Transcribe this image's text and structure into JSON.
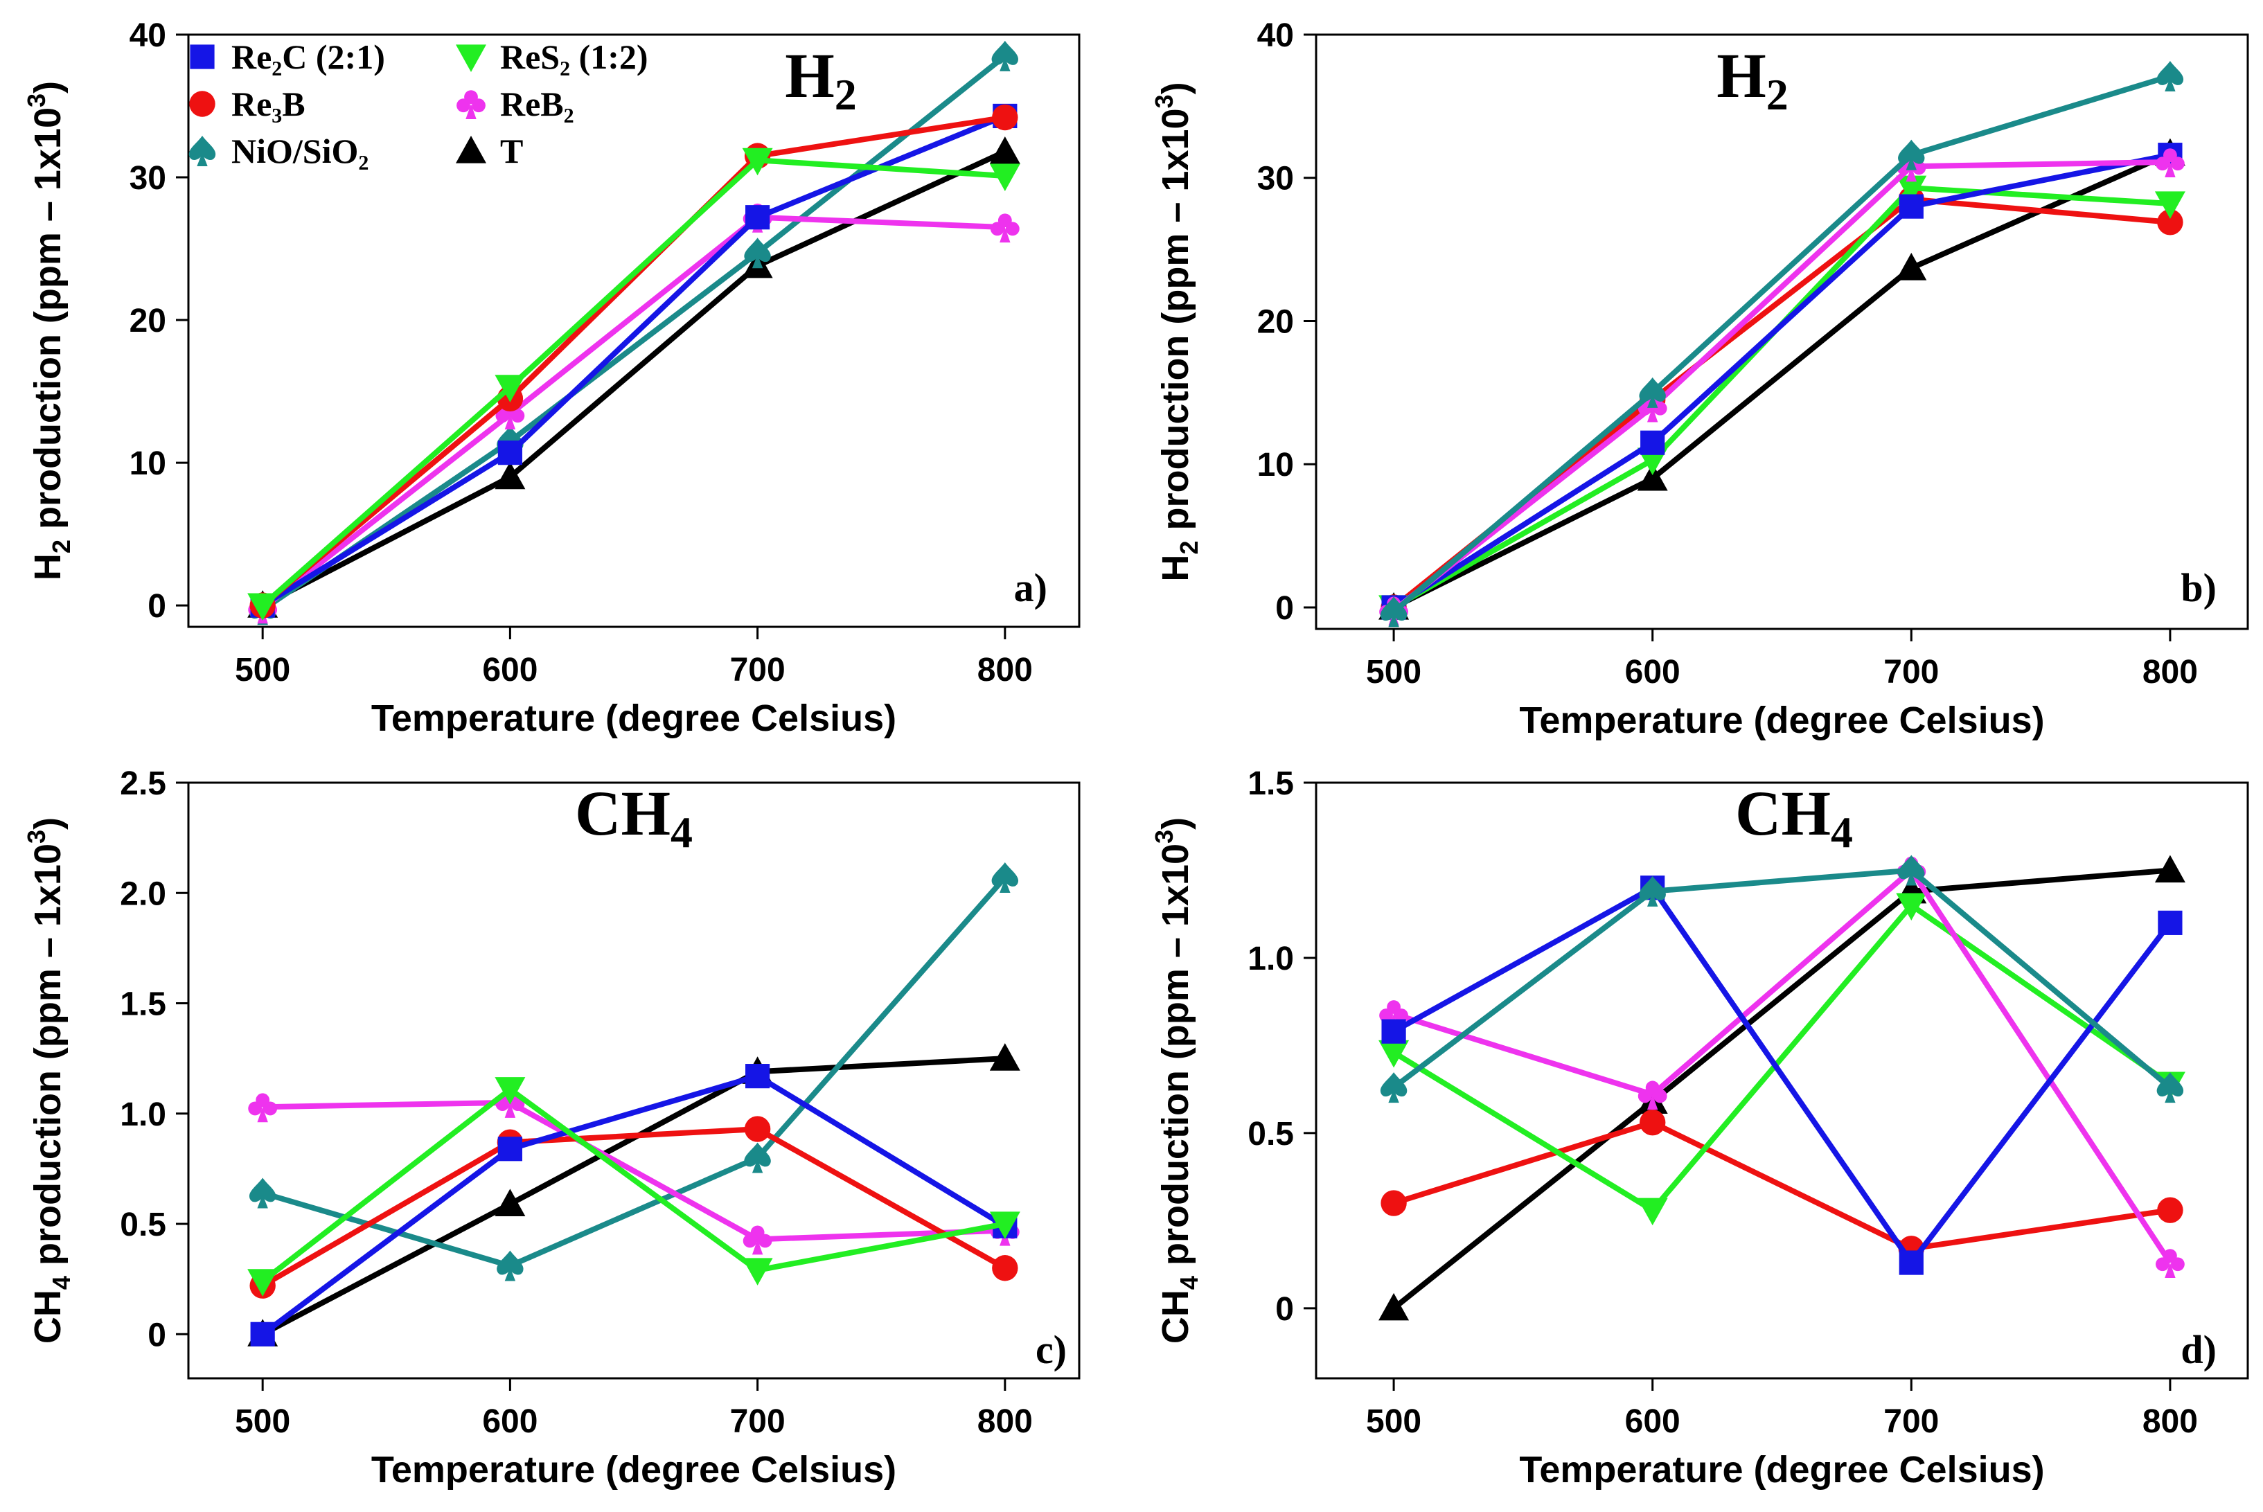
{
  "legend": {
    "entries": [
      {
        "series": "Re2C",
        "label": "Re₂C (2:1)"
      },
      {
        "series": "ReS2",
        "label": "ReS₂ (1:2)"
      },
      {
        "series": "Re3B",
        "label": "Re₃B"
      },
      {
        "series": "ReB2",
        "label": "ReB₂"
      },
      {
        "series": "NiO",
        "label": "NiO/SiO₂"
      },
      {
        "series": "T",
        "label": "T"
      }
    ]
  },
  "series_styles": {
    "Re2C": {
      "color": "#1515e6",
      "marker": "square"
    },
    "ReS2": {
      "color": "#22ee22",
      "marker": "triangle-down"
    },
    "Re3B": {
      "color": "#ee1111",
      "marker": "circle"
    },
    "ReB2": {
      "color": "#ee33ee",
      "marker": "club"
    },
    "NiO": {
      "color": "#1a8a8a",
      "marker": "spade"
    },
    "T": {
      "color": "#000000",
      "marker": "triangle-up"
    }
  },
  "chart_data": [
    {
      "type": "line",
      "panel": "a)",
      "title": "H",
      "title_sub": "2",
      "xlabel": "Temperature (degree Celsius)",
      "ylabel": "H2 production (ppm – 1x10³)",
      "ylabel_parts": [
        "H",
        "2",
        " production (ppm – 1x10",
        "3",
        ")"
      ],
      "x": [
        500,
        600,
        700,
        800
      ],
      "xlim": [
        470,
        830
      ],
      "ylim": [
        -1.5,
        40
      ],
      "yticks": [
        0,
        10,
        20,
        30,
        40
      ],
      "ytick_labels": [
        "0",
        "10",
        "20",
        "30",
        "40"
      ],
      "xtick_labels": [
        "500",
        "600",
        "700",
        "800"
      ],
      "series": [
        {
          "key": "T",
          "name": "T",
          "values": [
            0,
            9,
            23.8,
            31.8
          ]
        },
        {
          "key": "NiO",
          "name": "NiO/SiO₂",
          "values": [
            -0.3,
            11.5,
            24.7,
            38.5
          ]
        },
        {
          "key": "ReB2",
          "name": "ReB₂",
          "values": [
            -0.2,
            13.4,
            27.2,
            26.5
          ]
        },
        {
          "key": "Re2C",
          "name": "Re₂C (2:1)",
          "values": [
            0,
            10.7,
            27.2,
            34.3
          ]
        },
        {
          "key": "Re3B",
          "name": "Re₃B",
          "values": [
            0,
            14.5,
            31.5,
            34.2
          ]
        },
        {
          "key": "ReS2",
          "name": "ReS₂ (1:2)",
          "values": [
            0,
            15.3,
            31.2,
            30.1
          ]
        }
      ]
    },
    {
      "type": "line",
      "panel": "b)",
      "title": "H",
      "title_sub": "2",
      "xlabel": "Temperature (degree Celsius)",
      "ylabel": "H2 production (ppm – 1x10³)",
      "ylabel_parts": [
        "H",
        "2",
        " production (ppm – 1x10",
        "3",
        ")"
      ],
      "x": [
        500,
        600,
        700,
        800
      ],
      "xlim": [
        470,
        830
      ],
      "ylim": [
        -1.5,
        40
      ],
      "yticks": [
        0,
        10,
        20,
        30,
        40
      ],
      "ytick_labels": [
        "0",
        "10",
        "20",
        "30",
        "40"
      ],
      "xtick_labels": [
        "500",
        "600",
        "700",
        "800"
      ],
      "series": [
        {
          "key": "T",
          "name": "T",
          "values": [
            0,
            9,
            23.7,
            31.7
          ]
        },
        {
          "key": "Re3B",
          "name": "Re₃B",
          "values": [
            0,
            14.5,
            28.5,
            26.9
          ]
        },
        {
          "key": "ReS2",
          "name": "ReS₂ (1:2)",
          "values": [
            0,
            10.3,
            29.3,
            28.2
          ]
        },
        {
          "key": "Re2C",
          "name": "Re₂C (2:1)",
          "values": [
            0,
            11.5,
            28,
            31.6
          ]
        },
        {
          "key": "ReB2",
          "name": "ReB₂",
          "values": [
            -0.2,
            14,
            30.8,
            31.1
          ]
        },
        {
          "key": "NiO",
          "name": "NiO/SiO₂",
          "values": [
            -0.3,
            15,
            31.6,
            37.1
          ]
        }
      ]
    },
    {
      "type": "line",
      "panel": "c)",
      "title": "CH",
      "title_sub": "4",
      "xlabel": "Temperature (degree Celsius)",
      "ylabel": "CH4 production (ppm – 1x10³)",
      "ylabel_parts": [
        "CH",
        "4",
        " production (ppm – 1x10",
        "3",
        ")"
      ],
      "x": [
        500,
        600,
        700,
        800
      ],
      "xlim": [
        470,
        830
      ],
      "ylim": [
        -0.2,
        2.5
      ],
      "yticks": [
        0,
        0.5,
        1.0,
        1.5,
        2.0,
        2.5
      ],
      "ytick_labels": [
        "0",
        "0.5",
        "1.0",
        "1.5",
        "2.0",
        "2.5"
      ],
      "xtick_labels": [
        "500",
        "600",
        "700",
        "800"
      ],
      "series": [
        {
          "key": "T",
          "name": "T",
          "values": [
            0,
            0.59,
            1.19,
            1.25
          ]
        },
        {
          "key": "NiO",
          "name": "NiO/SiO₂",
          "values": [
            0.64,
            0.31,
            0.8,
            2.07
          ]
        },
        {
          "key": "ReB2",
          "name": "ReB₂",
          "values": [
            1.03,
            1.05,
            0.43,
            0.47
          ]
        },
        {
          "key": "Re3B",
          "name": "Re₃B",
          "values": [
            0.22,
            0.87,
            0.93,
            0.3
          ]
        },
        {
          "key": "Re2C",
          "name": "Re₂C (2:1)",
          "values": [
            0,
            0.84,
            1.17,
            0.49
          ]
        },
        {
          "key": "ReS2",
          "name": "ReS₂ (1:2)",
          "values": [
            0.24,
            1.11,
            0.29,
            0.5
          ]
        }
      ]
    },
    {
      "type": "line",
      "panel": "d)",
      "title": "CH",
      "title_sub": "4",
      "xlabel": "Temperature (degree Celsius)",
      "ylabel": "CH4 production (ppm – 1x10³)",
      "ylabel_parts": [
        "CH",
        "4",
        " production (ppm – 1x10",
        "3",
        ")"
      ],
      "x": [
        500,
        600,
        700,
        800
      ],
      "xlim": [
        470,
        830
      ],
      "ylim": [
        -0.2,
        1.5
      ],
      "yticks": [
        0,
        0.5,
        1.0,
        1.5
      ],
      "ytick_labels": [
        "0",
        "0.5",
        "1.0",
        "1.5"
      ],
      "xtick_labels": [
        "500",
        "600",
        "700",
        "800"
      ],
      "series": [
        {
          "key": "T",
          "name": "T",
          "values": [
            0,
            0.59,
            1.19,
            1.25
          ]
        },
        {
          "key": "Re3B",
          "name": "Re₃B",
          "values": [
            0.3,
            0.53,
            0.17,
            0.28
          ]
        },
        {
          "key": "ReS2",
          "name": "ReS₂ (1:2)",
          "values": [
            0.73,
            0.28,
            1.15,
            0.64
          ]
        },
        {
          "key": "ReB2",
          "name": "ReB₂",
          "values": [
            0.84,
            0.61,
            1.25,
            0.13
          ]
        },
        {
          "key": "Re2C",
          "name": "Re₂C (2:1)",
          "values": [
            0.79,
            1.2,
            0.13,
            1.1
          ]
        },
        {
          "key": "NiO",
          "name": "NiO/SiO₂",
          "values": [
            0.63,
            1.19,
            1.25,
            0.63
          ]
        }
      ]
    }
  ]
}
